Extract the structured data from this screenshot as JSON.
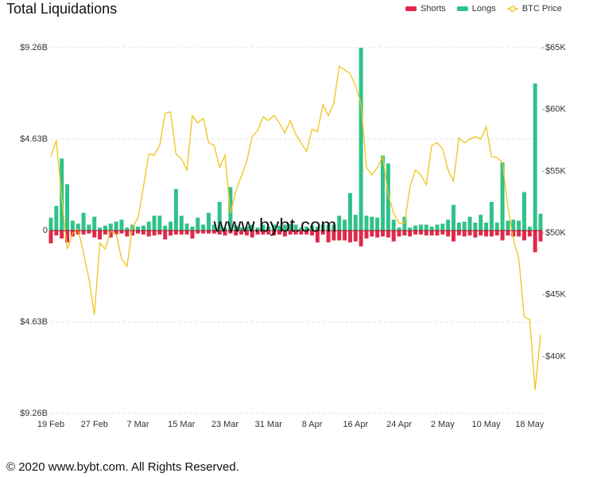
{
  "chart_data": {
    "type": "bar",
    "title": "Total Liquidations",
    "watermark": "www.bybt.com",
    "footer": "© 2020 www.bybt.com. All Rights Reserved.",
    "categories": [
      "19 Feb",
      null,
      null,
      null,
      null,
      null,
      null,
      null,
      "27 Feb",
      null,
      null,
      null,
      null,
      null,
      null,
      null,
      "7 Mar",
      null,
      null,
      null,
      null,
      null,
      null,
      null,
      "15 Mar",
      null,
      null,
      null,
      null,
      null,
      null,
      null,
      "23 Mar",
      null,
      null,
      null,
      null,
      null,
      null,
      null,
      "31 Mar",
      null,
      null,
      null,
      null,
      null,
      null,
      null,
      "8 Apr",
      null,
      null,
      null,
      null,
      null,
      null,
      null,
      "16 Apr",
      null,
      null,
      null,
      null,
      null,
      null,
      null,
      "24 Apr",
      null,
      null,
      null,
      null,
      null,
      null,
      null,
      "2 May",
      null,
      null,
      null,
      null,
      null,
      null,
      null,
      "10 May",
      null,
      null,
      null,
      null,
      null,
      null,
      null,
      "18 May",
      null,
      null
    ],
    "series": [
      {
        "name": "Shorts",
        "color": "#e0294a",
        "values": [
          -0.65,
          -0.25,
          -0.4,
          -0.6,
          -0.3,
          -0.2,
          -0.2,
          -0.15,
          -0.35,
          -0.45,
          -0.2,
          -0.35,
          -0.2,
          -0.15,
          -0.3,
          -0.25,
          -0.15,
          -0.2,
          -0.3,
          -0.25,
          -0.2,
          -0.45,
          -0.25,
          -0.2,
          -0.2,
          -0.2,
          -0.4,
          -0.15,
          -0.15,
          -0.15,
          -0.15,
          -0.2,
          -0.25,
          -0.15,
          -0.25,
          -0.2,
          -0.25,
          -0.35,
          -0.2,
          -0.2,
          -0.2,
          -0.25,
          -0.2,
          -0.3,
          -0.2,
          -0.2,
          -0.2,
          -0.2,
          -0.25,
          -0.6,
          -0.2,
          -0.6,
          -0.5,
          -0.5,
          -0.5,
          -0.6,
          -0.55,
          -0.8,
          -0.4,
          -0.3,
          -0.35,
          -0.3,
          -0.35,
          -0.55,
          -0.3,
          -0.25,
          -0.3,
          -0.2,
          -0.2,
          -0.25,
          -0.25,
          -0.25,
          -0.2,
          -0.3,
          -0.55,
          -0.25,
          -0.3,
          -0.25,
          -0.35,
          -0.25,
          -0.3,
          -0.3,
          -0.25,
          -0.5,
          -0.25,
          -0.3,
          -0.3,
          -0.5,
          -0.3,
          -1.1,
          -0.55
        ]
      },
      {
        "name": "Longs",
        "color": "#2fc28a",
        "values": [
          0.65,
          1.25,
          3.65,
          2.35,
          0.5,
          0.35,
          0.9,
          0.3,
          0.7,
          0.15,
          0.25,
          0.35,
          0.45,
          0.55,
          0.15,
          0.3,
          0.2,
          0.25,
          0.45,
          0.75,
          0.75,
          0.25,
          0.45,
          2.1,
          0.75,
          0.35,
          0.2,
          0.65,
          0.3,
          0.9,
          0.3,
          1.45,
          0.15,
          2.2,
          0.25,
          0.15,
          0.2,
          0.3,
          0.15,
          0.3,
          0.2,
          0.3,
          0.25,
          0.3,
          0.35,
          0.3,
          0.15,
          0.2,
          0.25,
          0.2,
          0.3,
          0.3,
          0.3,
          0.75,
          0.55,
          1.9,
          0.8,
          9.26,
          0.75,
          0.7,
          0.65,
          3.8,
          3.4,
          0.55,
          0.15,
          0.7,
          0.15,
          0.25,
          0.3,
          0.3,
          0.2,
          0.3,
          0.35,
          0.55,
          1.3,
          0.4,
          0.45,
          0.7,
          0.4,
          0.8,
          0.4,
          1.45,
          0.4,
          3.45,
          0.5,
          0.55,
          0.5,
          1.95,
          0.2,
          7.45,
          0.85
        ]
      },
      {
        "name": "BTC Price",
        "color": "#f0c419",
        "type": "line",
        "axis": "y2",
        "values": [
          56200,
          57500,
          52800,
          48700,
          50000,
          50300,
          48400,
          46300,
          43400,
          49200,
          48700,
          50200,
          49900,
          47900,
          47300,
          50500,
          51200,
          53700,
          56400,
          56300,
          57100,
          59700,
          59800,
          56400,
          56000,
          55100,
          59500,
          58900,
          59300,
          57300,
          57100,
          55300,
          56300,
          51600,
          53400,
          54600,
          55800,
          57800,
          58300,
          59400,
          59100,
          59500,
          58900,
          58100,
          59100,
          58000,
          57300,
          56600,
          58400,
          58200,
          60400,
          59500,
          60500,
          63500,
          63200,
          62900,
          61900,
          60500,
          55300,
          54700,
          55300,
          56200,
          53100,
          51600,
          50800,
          50800,
          53700,
          55100,
          54700,
          53900,
          57100,
          57300,
          56800,
          55100,
          54200,
          57700,
          57300,
          57600,
          57800,
          57600,
          58600,
          56200,
          56100,
          55700,
          52100,
          49500,
          47900,
          43200,
          43000,
          37300,
          41800
        ]
      }
    ],
    "ylim": [
      -9.26,
      9.26
    ],
    "yticks": [
      {
        "value": 9.26,
        "label": "$9.26B"
      },
      {
        "value": 4.63,
        "label": "$4.63B"
      },
      0,
      {
        "value": -4.63,
        "label": "$4.63B"
      },
      {
        "value": -9.26,
        "label": "$9.26B"
      }
    ],
    "y2lim": [
      35400,
      65000
    ],
    "y2ticks": [
      {
        "value": 65000,
        "label": "$65K"
      },
      {
        "value": 60000,
        "label": "$60K"
      },
      {
        "value": 55000,
        "label": "$55K"
      },
      {
        "value": 50000,
        "label": "$50K"
      },
      {
        "value": 45000,
        "label": "$45K"
      },
      {
        "value": 40000,
        "label": "$40K"
      }
    ],
    "grid": true,
    "legend": "top-right"
  }
}
